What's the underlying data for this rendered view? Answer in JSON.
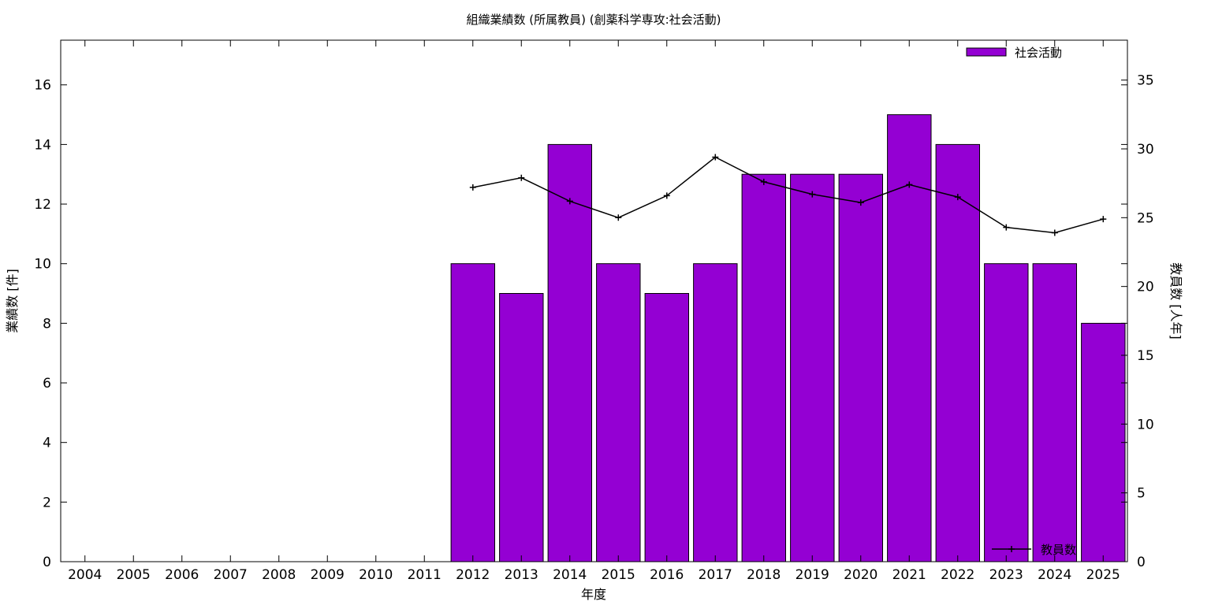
{
  "chart_data": {
    "type": "bar",
    "title": "組織業績数 (所属教員) (創薬科学専攻:社会活動)",
    "xlabel": "年度",
    "ylabel": "業績数 [件]",
    "y2label": "教員数 [人年]",
    "categories": [
      "2004",
      "2005",
      "2006",
      "2007",
      "2008",
      "2009",
      "2010",
      "2011",
      "2012",
      "2013",
      "2014",
      "2015",
      "2016",
      "2017",
      "2018",
      "2019",
      "2020",
      "2021",
      "2022",
      "2023",
      "2024",
      "2025"
    ],
    "ylim": [
      0,
      17.5
    ],
    "y2lim": [
      0,
      37.9
    ],
    "yticks": [
      0,
      2,
      4,
      6,
      8,
      10,
      12,
      14,
      16
    ],
    "y2ticks": [
      0,
      5,
      10,
      15,
      20,
      25,
      30,
      35
    ],
    "series": [
      {
        "name": "社会活動",
        "type": "bar",
        "axis": "left",
        "color": "#9400d3",
        "values": [
          null,
          null,
          null,
          null,
          null,
          null,
          null,
          null,
          10,
          9,
          14,
          10,
          9,
          10,
          13,
          13,
          13,
          15,
          14,
          10,
          10,
          8
        ]
      },
      {
        "name": "教員数",
        "type": "line",
        "axis": "right",
        "color": "#000000",
        "values": [
          null,
          null,
          null,
          null,
          null,
          null,
          null,
          null,
          27.2,
          27.9,
          26.2,
          25.0,
          26.6,
          29.4,
          27.6,
          26.7,
          26.1,
          27.4,
          26.5,
          24.3,
          23.9,
          24.9
        ]
      }
    ],
    "legend": [
      "top-right",
      "bottom-right"
    ],
    "grid": false
  }
}
